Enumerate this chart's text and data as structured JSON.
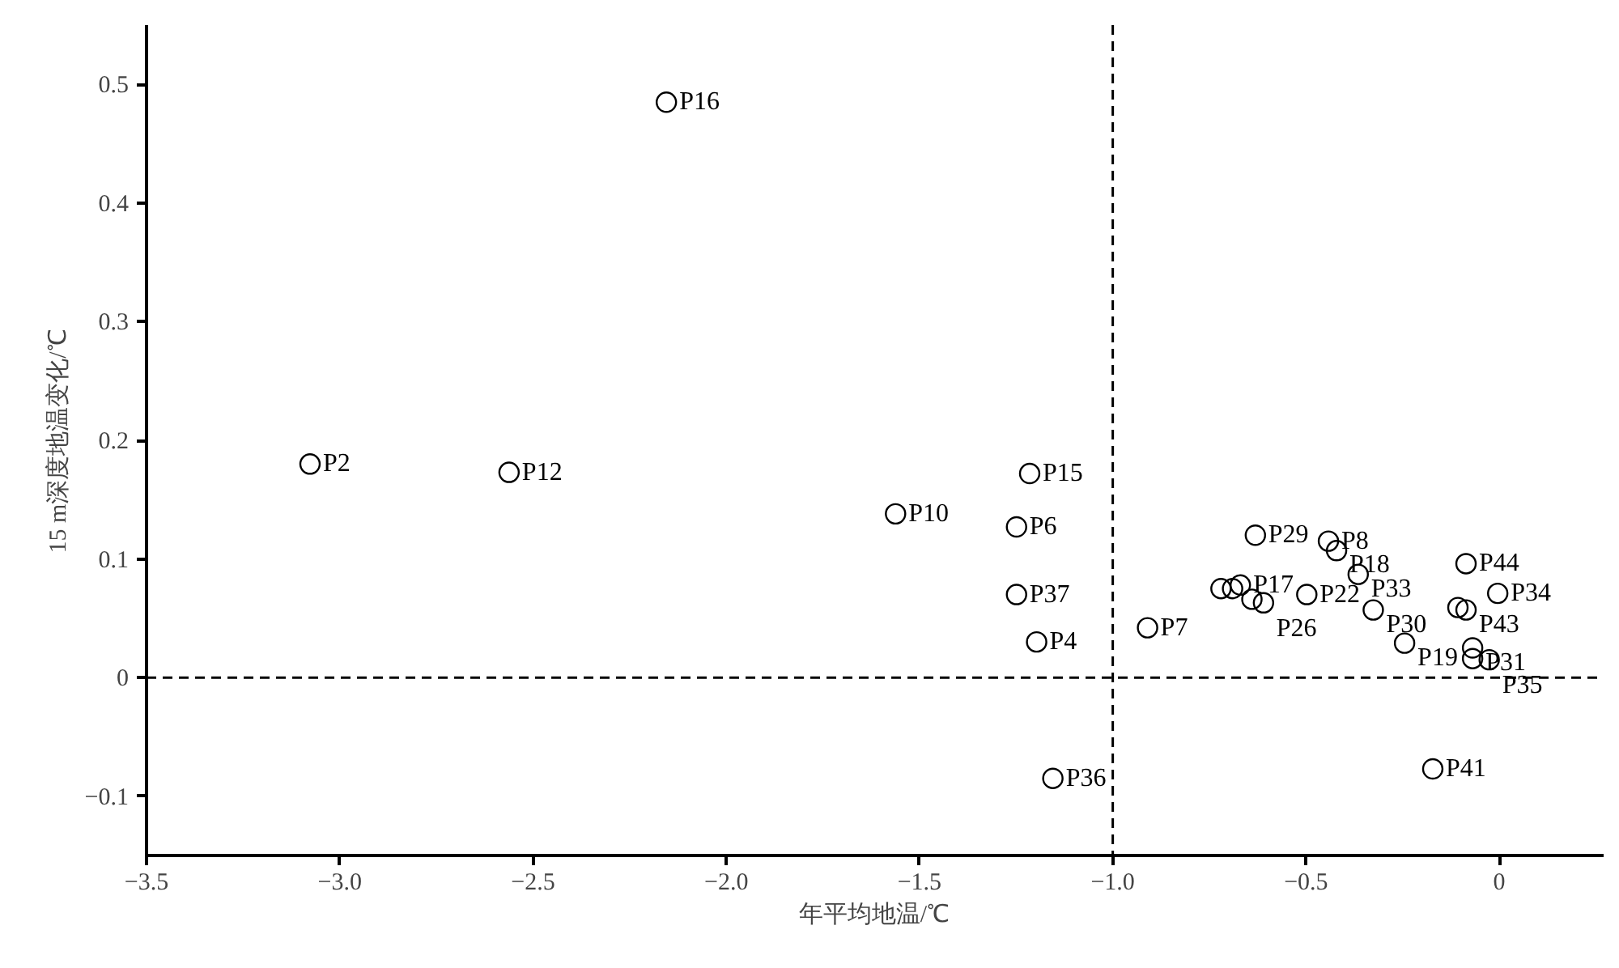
{
  "chart_data": {
    "type": "scatter",
    "xlabel": "年平均地温/℃",
    "ylabel": "15 m深度地温变化/℃",
    "x": [
      -2.155,
      -3.077,
      -2.562,
      -1.562,
      -1.215,
      -1.249,
      -1.249,
      -1.197,
      -1.155,
      -0.91,
      -0.631,
      -0.442,
      -0.421,
      -0.365,
      -0.498,
      -0.72,
      -0.69,
      -0.67,
      -0.64,
      -0.61,
      -0.326,
      -0.086,
      -0.004,
      -0.107,
      -0.086,
      -0.245,
      -0.069,
      -0.069,
      -0.026,
      -0.172
    ],
    "values": [
      0.485,
      0.18,
      0.173,
      0.138,
      0.172,
      0.127,
      0.07,
      0.03,
      -0.085,
      0.042,
      0.12,
      0.115,
      0.107,
      0.087,
      0.07,
      0.075,
      0.075,
      0.078,
      0.066,
      0.063,
      0.057,
      0.096,
      0.071,
      0.059,
      0.057,
      0.029,
      0.025,
      0.016,
      0.015,
      -0.077
    ],
    "value_labels": [
      "P16",
      "P2",
      "P12",
      "P10",
      "P15",
      "P6",
      "P37",
      "P4",
      "P36",
      "P7",
      "P29",
      "P8",
      "P18",
      "P33",
      "P22",
      null,
      null,
      "P17",
      null,
      "P26",
      "P30",
      "P44",
      "P34",
      null,
      "P43",
      "P19",
      "P31",
      null,
      "P35",
      "P41"
    ],
    "color": "#000000",
    "marker": "circle",
    "xlim": [
      -3.5,
      0.27
    ],
    "ylim": [
      -0.15,
      0.55
    ],
    "xticks": [
      {
        "value": -3.5,
        "label": "−3.5"
      },
      {
        "value": -3.0,
        "label": "−3.0"
      },
      {
        "value": -2.5,
        "label": "−2.5"
      },
      {
        "value": -2.0,
        "label": "−2.0"
      },
      {
        "value": -1.5,
        "label": "−1.5"
      },
      {
        "value": -1.0,
        "label": "−1.0"
      },
      {
        "value": -0.5,
        "label": "−0.5"
      },
      0
    ],
    "yticks": [
      {
        "value": -0.1,
        "label": "−0.1"
      },
      0,
      0.1,
      0.2,
      0.3,
      0.4,
      0.5
    ],
    "ref_lines": [
      {
        "axis": "x",
        "value": -1.0,
        "line_style": "dashed",
        "color": "#000000"
      },
      {
        "axis": "y",
        "value": 0,
        "line_style": "dashed",
        "color": "#000000"
      }
    ],
    "grid": false
  }
}
